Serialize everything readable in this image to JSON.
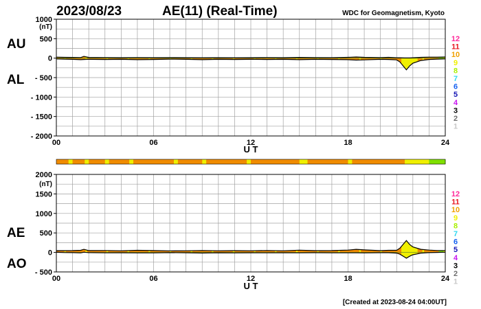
{
  "header": {
    "date": "2023/08/23",
    "title": "AE(11) (Real-Time)",
    "source": "WDC for Geomagnetism, Kyoto"
  },
  "footer": {
    "created": "[Created at 2023-08-24 04:00UT]"
  },
  "colors": {
    "grid": "#a0a0a0",
    "curve": "#000000",
    "fill_orange": "#f08c00",
    "fill_yellow": "#f0f000",
    "fill_green": "#80e000"
  },
  "station_scale": [
    {
      "label": "12",
      "color": "#ff2a9a"
    },
    {
      "label": "11",
      "color": "#e8141e"
    },
    {
      "label": "10",
      "color": "#f0a000"
    },
    {
      "label": "9",
      "color": "#f0f000"
    },
    {
      "label": "8",
      "color": "#a8f000"
    },
    {
      "label": "7",
      "color": "#30d8f0"
    },
    {
      "label": "6",
      "color": "#1460f0"
    },
    {
      "label": "5",
      "color": "#1414b4"
    },
    {
      "label": "4",
      "color": "#c814f0"
    },
    {
      "label": "3",
      "color": "#000000"
    },
    {
      "label": "2",
      "color": "#6e6e6e"
    },
    {
      "label": "1",
      "color": "#c8c8c8"
    }
  ],
  "chart_data": [
    {
      "type": "area",
      "panel": "upper",
      "labels": {
        "top": "AU",
        "bottom": "AL"
      },
      "ylabel": "(nT)",
      "xlabel": "U T",
      "xlim": [
        0,
        24
      ],
      "xticks": [
        "00",
        "06",
        "12",
        "18",
        "24"
      ],
      "ylim": [
        -2000,
        1000
      ],
      "yticks": [
        "1000",
        "500",
        "0",
        "- 500",
        "- 1000",
        "- 1500",
        "- 2000"
      ],
      "ytick_values": [
        1000,
        500,
        0,
        -500,
        -1000,
        -1500,
        -2000
      ],
      "grid": true,
      "series": [
        {
          "name": "AU",
          "x": [
            0,
            0.5,
            1,
            1.5,
            1.7,
            2,
            3,
            4,
            5,
            6,
            7,
            8,
            9,
            10,
            11,
            12,
            13,
            14,
            15,
            16,
            17,
            18,
            18.5,
            19,
            20,
            20.5,
            21,
            21.2,
            21.5,
            21.6,
            21.8,
            22,
            22.5,
            23,
            23.5,
            24
          ],
          "values": [
            25,
            20,
            18,
            15,
            45,
            18,
            15,
            12,
            15,
            12,
            15,
            12,
            10,
            12,
            10,
            12,
            15,
            12,
            18,
            15,
            12,
            20,
            30,
            20,
            15,
            20,
            10,
            10,
            5,
            5,
            5,
            10,
            20,
            25,
            25,
            30
          ]
        },
        {
          "name": "AL",
          "x": [
            0,
            0.5,
            1,
            1.5,
            1.7,
            2,
            3,
            4,
            5,
            6,
            7,
            8,
            9,
            10,
            11,
            12,
            13,
            14,
            15,
            16,
            17,
            18,
            18.5,
            19,
            20,
            20.5,
            21,
            21.2,
            21.5,
            21.6,
            21.8,
            22,
            22.5,
            23,
            23.5,
            24
          ],
          "values": [
            -20,
            -25,
            -30,
            -40,
            -35,
            -30,
            -35,
            -30,
            -40,
            -35,
            -25,
            -30,
            -40,
            -30,
            -35,
            -30,
            -35,
            -30,
            -40,
            -30,
            -35,
            -40,
            -50,
            -45,
            -30,
            -35,
            -45,
            -100,
            -250,
            -300,
            -200,
            -130,
            -60,
            -35,
            -25,
            -20
          ]
        }
      ],
      "annotations": [
        "Created at 2023-08-24 04:00UT"
      ]
    },
    {
      "type": "area",
      "panel": "lower",
      "labels": {
        "top": "AE",
        "bottom": "AO"
      },
      "ylabel": "(nT)",
      "xlabel": "U T",
      "xlim": [
        0,
        24
      ],
      "xticks": [
        "00",
        "06",
        "12",
        "18",
        "24"
      ],
      "ylim": [
        -500,
        2000
      ],
      "yticks": [
        "2000",
        "1500",
        "1000",
        "500",
        "0",
        "- 500"
      ],
      "ytick_values": [
        2000,
        1500,
        1000,
        500,
        0,
        -500
      ],
      "grid": true,
      "series": [
        {
          "name": "AE",
          "x": [
            0,
            0.5,
            1,
            1.5,
            1.7,
            2,
            3,
            4,
            5,
            6,
            7,
            8,
            9,
            10,
            11,
            12,
            13,
            14,
            15,
            16,
            17,
            18,
            18.5,
            19,
            20,
            20.5,
            21,
            21.2,
            21.5,
            21.6,
            21.8,
            22,
            22.5,
            23,
            23.5,
            24
          ],
          "values": [
            45,
            45,
            48,
            55,
            80,
            48,
            50,
            42,
            55,
            47,
            40,
            42,
            50,
            42,
            45,
            42,
            50,
            42,
            58,
            45,
            47,
            60,
            80,
            65,
            45,
            55,
            55,
            110,
            255,
            305,
            205,
            140,
            80,
            60,
            50,
            50
          ]
        },
        {
          "name": "AO",
          "x": [
            0,
            0.5,
            1,
            1.5,
            1.7,
            2,
            3,
            4,
            5,
            6,
            7,
            8,
            9,
            10,
            11,
            12,
            13,
            14,
            15,
            16,
            17,
            18,
            18.5,
            19,
            20,
            20.5,
            21,
            21.2,
            21.5,
            21.6,
            21.8,
            22,
            22.5,
            23,
            23.5,
            24
          ],
          "values": [
            3,
            -3,
            -6,
            -12,
            5,
            -6,
            -10,
            -9,
            -12,
            -12,
            -5,
            -9,
            -15,
            -9,
            -12,
            -9,
            -10,
            -9,
            -11,
            -7,
            -11,
            -10,
            -10,
            -12,
            -7,
            -7,
            -17,
            -45,
            -122,
            -148,
            -98,
            -60,
            -20,
            -5,
            0,
            5
          ]
        }
      ]
    }
  ]
}
